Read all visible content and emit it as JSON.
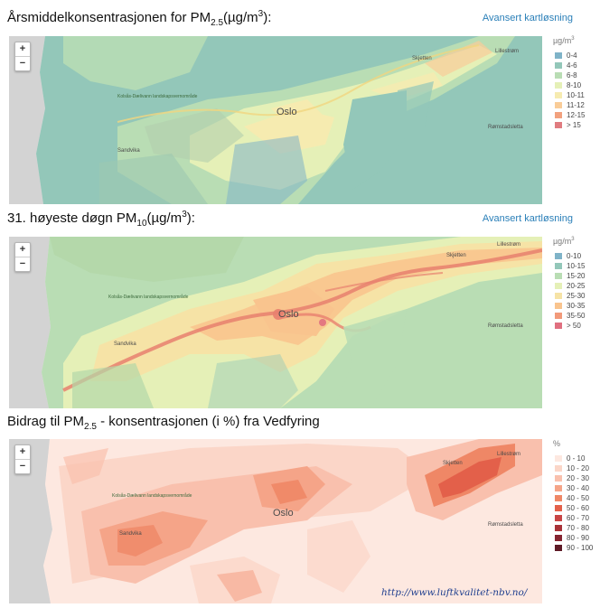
{
  "sections": [
    {
      "title_main": "Årsmiddelkonsentrasjonen for PM",
      "title_sub": "2.5",
      "title_unit_pre": "(µg/m",
      "title_unit_sup": "3",
      "title_unit_post": "):",
      "link": "Avansert kartløsning",
      "legend_unit": "µg/m",
      "legend_unit_sup": "3",
      "legend": [
        {
          "label": "0-4",
          "color": "#7fb3c8"
        },
        {
          "label": "4-6",
          "color": "#93c7b9"
        },
        {
          "label": "6-8",
          "color": "#b9ddb4"
        },
        {
          "label": "8-10",
          "color": "#e5f0b7"
        },
        {
          "label": "10-11",
          "color": "#f6ebb0"
        },
        {
          "label": "11-12",
          "color": "#f9cc98"
        },
        {
          "label": "12-15",
          "color": "#f2a17e"
        },
        {
          "label": "> 15",
          "color": "#e07c80"
        }
      ]
    },
    {
      "title_main": "31. høyeste døgn PM",
      "title_sub": "10",
      "title_unit_pre": "(µg/m",
      "title_unit_sup": "3",
      "title_unit_post": "):",
      "link": "Avansert kartløsning",
      "legend_unit": "µg/m",
      "legend_unit_sup": "3",
      "legend": [
        {
          "label": "0-10",
          "color": "#7fb3c8"
        },
        {
          "label": "10-15",
          "color": "#93c7b9"
        },
        {
          "label": "15-20",
          "color": "#b9ddb4"
        },
        {
          "label": "20-25",
          "color": "#e5f0b7"
        },
        {
          "label": "25-30",
          "color": "#f6e3a6"
        },
        {
          "label": "30-35",
          "color": "#f9c48e"
        },
        {
          "label": "35-50",
          "color": "#f29a7a"
        },
        {
          "label": "> 50",
          "color": "#e07080"
        }
      ]
    },
    {
      "title_main": "Bidrag til PM",
      "title_sub": "2.5",
      "title_unit_pre": " - konsentrasjonen (i %) fra Vedfyring",
      "title_unit_sup": "",
      "title_unit_post": "",
      "link": "",
      "legend_unit": "%",
      "legend_unit_sup": "",
      "legend": [
        {
          "label": "0 - 10",
          "color": "#fde8e0"
        },
        {
          "label": "10 - 20",
          "color": "#fbd6c8"
        },
        {
          "label": "20 - 30",
          "color": "#f9c0ad"
        },
        {
          "label": "30 - 40",
          "color": "#f5a488"
        },
        {
          "label": "40 - 50",
          "color": "#ef8766"
        },
        {
          "label": "50 - 60",
          "color": "#e3604a"
        },
        {
          "label": "60 - 70",
          "color": "#c84545"
        },
        {
          "label": "70 - 80",
          "color": "#a83238"
        },
        {
          "label": "80 - 90",
          "color": "#852430"
        },
        {
          "label": "90 - 100",
          "color": "#5e1a26"
        }
      ]
    }
  ],
  "map_labels": {
    "city": "Oslo",
    "lillestrom": "Lillestrøm",
    "skjetten": "Skjetten",
    "sandvika": "Sandvika",
    "ramstad": "Rømstadsletta",
    "kolsas": "Kolsås-Dælivann landskapsvernområde"
  },
  "zoom": {
    "in": "+",
    "out": "−"
  },
  "footer_url": "http://www.luftkvalitet-nbv.no/"
}
